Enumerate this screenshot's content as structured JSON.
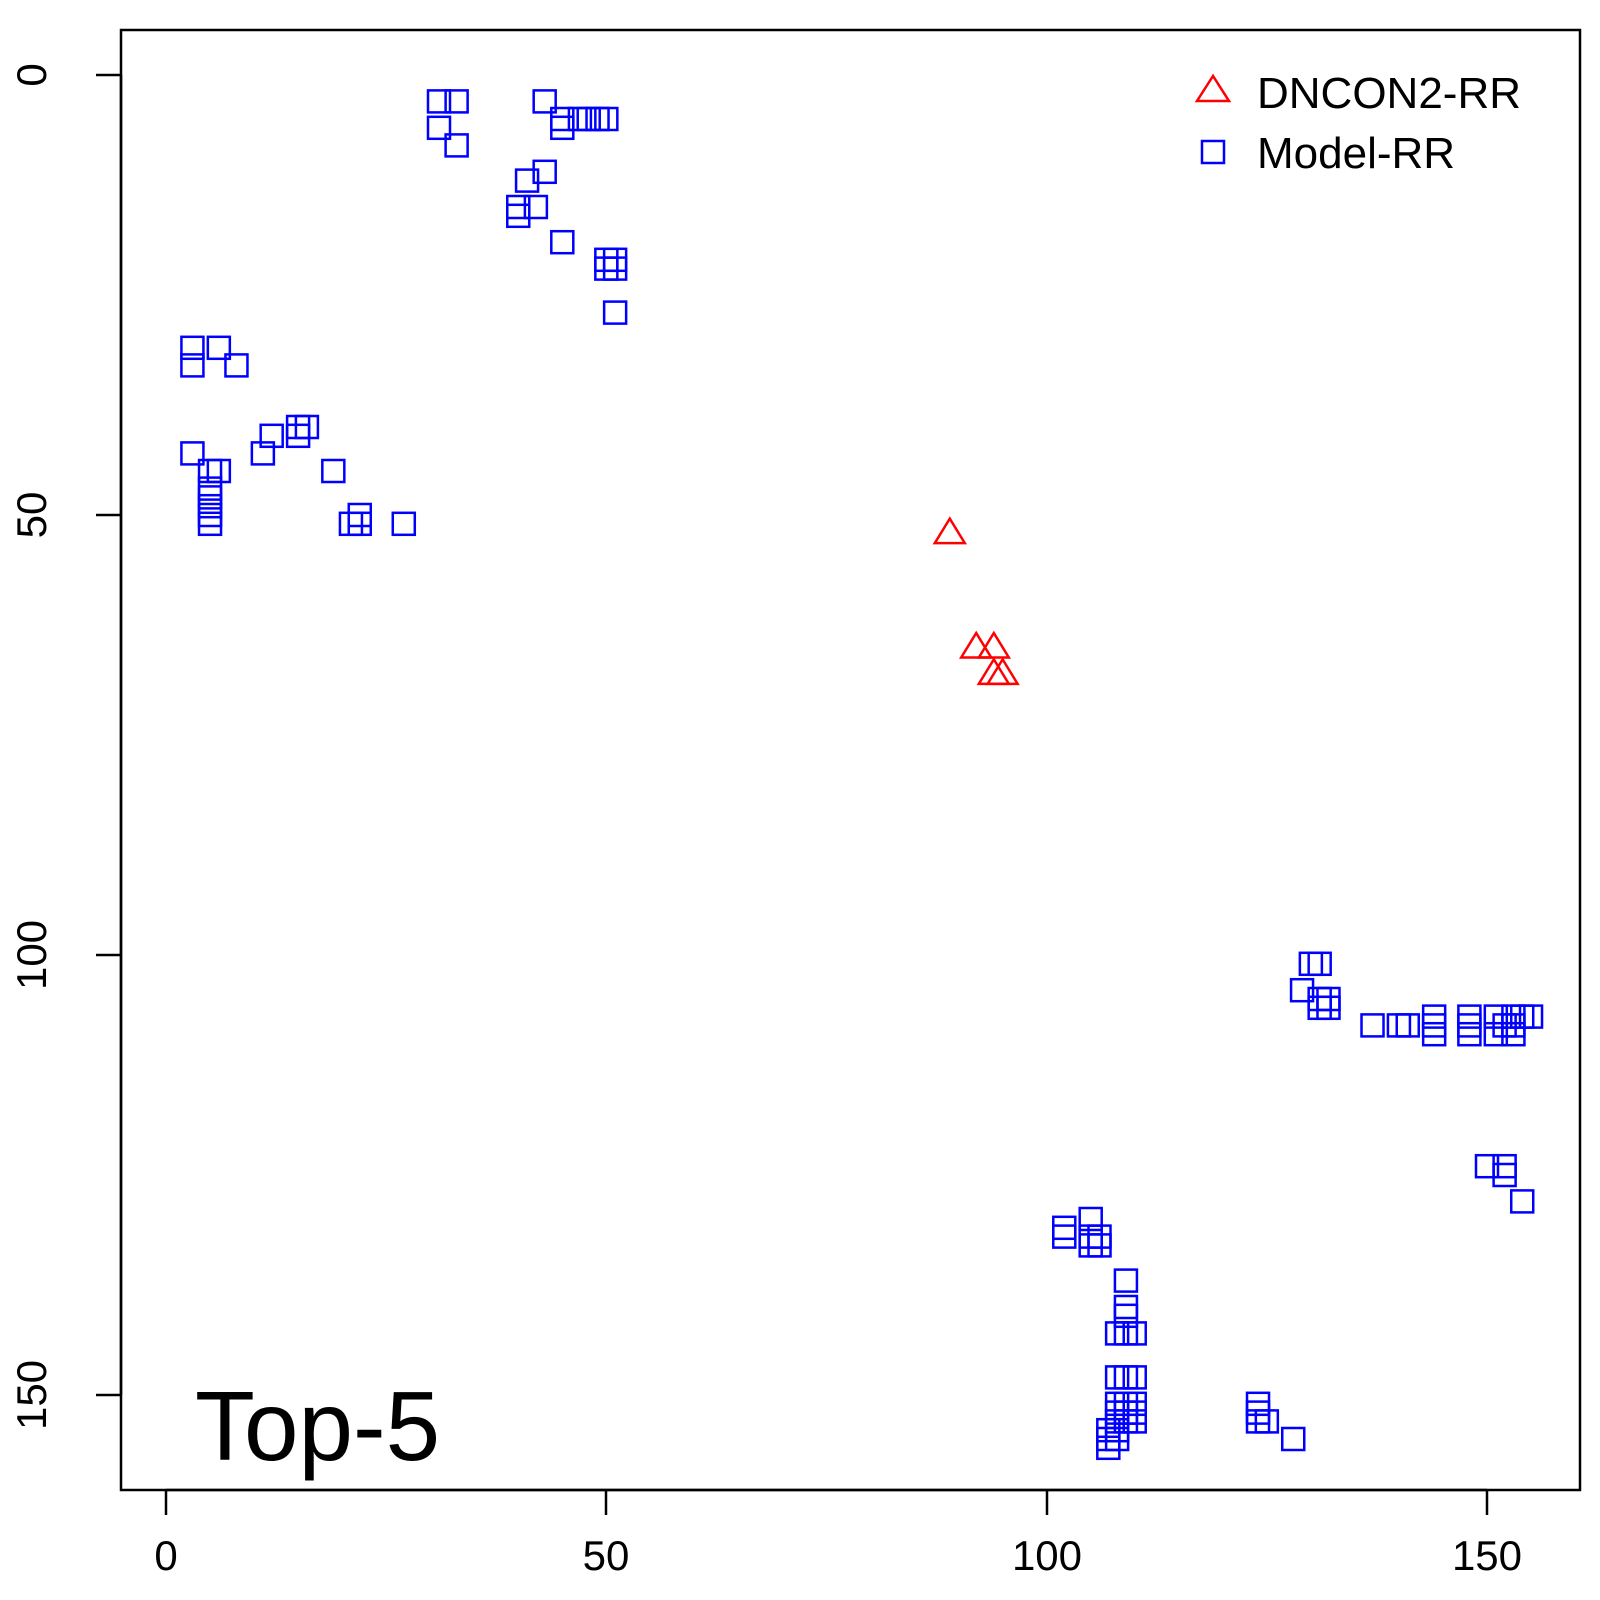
{
  "chart_data": {
    "type": "scatter",
    "annotation": "Top-5",
    "xlabel": "",
    "ylabel": "",
    "xlim": [
      -5,
      160
    ],
    "ylim": [
      160,
      -5
    ],
    "y_reversed": true,
    "grid": false,
    "legend_position": "top-right",
    "x_ticks": [
      "0",
      "50",
      "100",
      "150"
    ],
    "y_ticks": [
      "0",
      "50",
      "100",
      "150"
    ],
    "series": [
      {
        "name": "DNCON2-RR",
        "marker": "triangle",
        "color": "#ff0000",
        "points": [
          [
            89,
            52
          ],
          [
            92,
            65
          ],
          [
            94,
            65
          ],
          [
            94,
            68
          ],
          [
            95,
            68
          ]
        ]
      },
      {
        "name": "Model-RR",
        "marker": "square",
        "color": "#0000ff",
        "points": [
          [
            31,
            3
          ],
          [
            33,
            3
          ],
          [
            31,
            6
          ],
          [
            33,
            8
          ],
          [
            43,
            3
          ],
          [
            45,
            5
          ],
          [
            45,
            6
          ],
          [
            47,
            5
          ],
          [
            48,
            5
          ],
          [
            49,
            5
          ],
          [
            50,
            5
          ],
          [
            41,
            12
          ],
          [
            43,
            11
          ],
          [
            40,
            15
          ],
          [
            42,
            15
          ],
          [
            40,
            16
          ],
          [
            45,
            19
          ],
          [
            50,
            21
          ],
          [
            51,
            21
          ],
          [
            51,
            22
          ],
          [
            50,
            22
          ],
          [
            51,
            27
          ],
          [
            3,
            31
          ],
          [
            6,
            31
          ],
          [
            3,
            33
          ],
          [
            8,
            33
          ],
          [
            3,
            43
          ],
          [
            11,
            43
          ],
          [
            12,
            41
          ],
          [
            15,
            40
          ],
          [
            16,
            40
          ],
          [
            15,
            41
          ],
          [
            5,
            45
          ],
          [
            6,
            45
          ],
          [
            19,
            45
          ],
          [
            5,
            47
          ],
          [
            5,
            48
          ],
          [
            5,
            49
          ],
          [
            5,
            50
          ],
          [
            5,
            51
          ],
          [
            21,
            51
          ],
          [
            22,
            51
          ],
          [
            22,
            50
          ],
          [
            27,
            51
          ],
          [
            130,
            101
          ],
          [
            131,
            101
          ],
          [
            129,
            104
          ],
          [
            131,
            105
          ],
          [
            132,
            105
          ],
          [
            131,
            106
          ],
          [
            132,
            106
          ],
          [
            137,
            108
          ],
          [
            140,
            108
          ],
          [
            141,
            108
          ],
          [
            144,
            107
          ],
          [
            144,
            108
          ],
          [
            144,
            109
          ],
          [
            148,
            107
          ],
          [
            148,
            108
          ],
          [
            148,
            109
          ],
          [
            151,
            107
          ],
          [
            151,
            109
          ],
          [
            152,
            108
          ],
          [
            153,
            107
          ],
          [
            153,
            108
          ],
          [
            154,
            107
          ],
          [
            155,
            107
          ],
          [
            153,
            109
          ],
          [
            150,
            124
          ],
          [
            152,
            124
          ],
          [
            152,
            125
          ],
          [
            154,
            128
          ],
          [
            102,
            131
          ],
          [
            102,
            132
          ],
          [
            105,
            130
          ],
          [
            105,
            132
          ],
          [
            106,
            132
          ],
          [
            105,
            133
          ],
          [
            106,
            133
          ],
          [
            109,
            137
          ],
          [
            109,
            140
          ],
          [
            109,
            141
          ],
          [
            108,
            143
          ],
          [
            109,
            143
          ],
          [
            110,
            143
          ],
          [
            108,
            148
          ],
          [
            109,
            148
          ],
          [
            110,
            148
          ],
          [
            108,
            151
          ],
          [
            109,
            151
          ],
          [
            110,
            151
          ],
          [
            108,
            152
          ],
          [
            109,
            152
          ],
          [
            110,
            152
          ],
          [
            108,
            153
          ],
          [
            109,
            153
          ],
          [
            110,
            153
          ],
          [
            107,
            154
          ],
          [
            108,
            154
          ],
          [
            107,
            155
          ],
          [
            108,
            155
          ],
          [
            107,
            156
          ],
          [
            124,
            151
          ],
          [
            124,
            152
          ],
          [
            125,
            153
          ],
          [
            124,
            153
          ],
          [
            128,
            155
          ]
        ]
      }
    ]
  }
}
